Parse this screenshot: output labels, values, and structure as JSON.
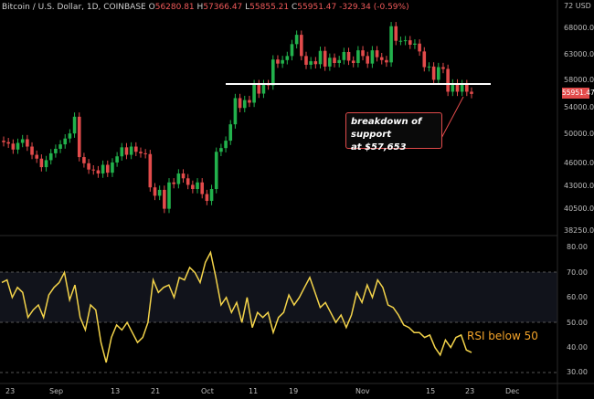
{
  "header": {
    "symbol": "Bitcoin / U.S. Dollar, 1D, COINBASE",
    "o_label": "O",
    "o_value": "56280.81",
    "h_label": "H",
    "h_value": "57366.47",
    "l_label": "L",
    "l_value": "55855.21",
    "c_label": "C",
    "c_value": "55951.47",
    "change": "-329.34 (-0.59%)"
  },
  "price_axis": {
    "labels": [
      "72 USD",
      "68000.00",
      "63000.00",
      "58000.00",
      "54000.00",
      "50000.00",
      "46000.00",
      "43000.00",
      "40500.00",
      "38250.00"
    ],
    "current_price": "55951.47"
  },
  "rsi_axis": {
    "labels": [
      "80.00",
      "70.00",
      "60.00",
      "50.00",
      "40.00",
      "30.00"
    ]
  },
  "date_axis": {
    "labels": [
      "23",
      "Sep",
      "13",
      "21",
      "Oct",
      "11",
      "19",
      "Nov",
      "15",
      "23",
      "Dec"
    ]
  },
  "annotation": {
    "line1": "breakdown of support",
    "line2": "at $57,653"
  },
  "rsi_label": "RSI below 50",
  "colors": {
    "up": "#22b14c",
    "down": "#e24b4b",
    "rsi_line": "#f3d34a",
    "rsi_text": "#f3a329",
    "support": "#ffffff"
  },
  "chart_data": {
    "type": "line",
    "title": "Bitcoin / U.S. Dollar, 1D, COINBASE",
    "support_level": 57653,
    "ohlc_last": {
      "open": 56280.81,
      "high": 57366.47,
      "low": 55855.21,
      "close": 55951.47
    },
    "price_series_close": [
      48900,
      48700,
      47900,
      48800,
      49300,
      48300,
      47200,
      46700,
      45600,
      46500,
      47400,
      48000,
      48600,
      49400,
      50100,
      52500,
      46900,
      46100,
      45300,
      45200,
      44800,
      45900,
      44900,
      46200,
      47000,
      48200,
      47200,
      48300,
      47600,
      47400,
      47300,
      43100,
      42100,
      42800,
      40600,
      43700,
      43500,
      44800,
      44200,
      43400,
      42900,
      43700,
      42300,
      41500,
      42900,
      47600,
      48100,
      49100,
      51400,
      55300,
      53800,
      55000,
      54600,
      57500,
      56000,
      57500,
      57300,
      61600,
      60900,
      61500,
      62200,
      64300,
      66000,
      62200,
      60700,
      61300,
      60800,
      63100,
      60400,
      61900,
      61000,
      61500,
      62900,
      61400,
      61000,
      63200,
      62200,
      60900,
      63200,
      62000,
      61500,
      61100,
      67600,
      64900,
      64900,
      65000,
      64200,
      64400,
      63000,
      60300,
      60400,
      58200,
      60300,
      60000,
      56300,
      57600,
      56300,
      57500,
      56300,
      55951
    ],
    "rsi": {
      "levels": [
        30,
        50,
        70
      ],
      "ylim": [
        30,
        80
      ]
    },
    "price_ylim": [
      38250,
      72000
    ]
  }
}
